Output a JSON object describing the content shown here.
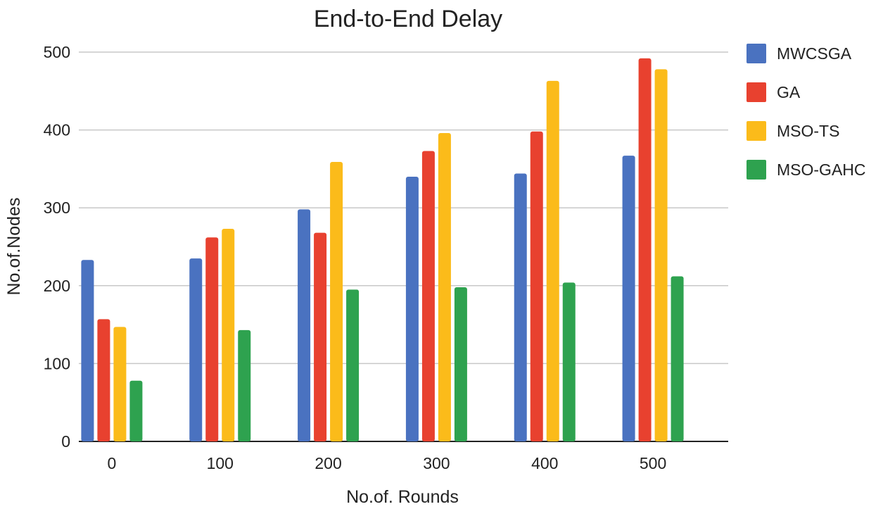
{
  "chart_data": {
    "type": "bar",
    "title": "End-to-End Delay",
    "xlabel": "No.of. Rounds",
    "ylabel": "No.of.Nodes",
    "categories": [
      "0",
      "100",
      "200",
      "300",
      "400",
      "500"
    ],
    "ylim": [
      0,
      500
    ],
    "yticks": [
      0,
      100,
      200,
      300,
      400,
      500
    ],
    "grid": true,
    "legend_position": "right",
    "series": [
      {
        "name": "MWCSGA",
        "color": "#4a72c0",
        "values": [
          233,
          235,
          298,
          340,
          344,
          367
        ]
      },
      {
        "name": "GA",
        "color": "#e8412f",
        "values": [
          157,
          262,
          268,
          373,
          398,
          492
        ]
      },
      {
        "name": "MSO-TS",
        "color": "#fbbb1a",
        "values": [
          147,
          273,
          359,
          396,
          463,
          478
        ]
      },
      {
        "name": "MSO-GAHC",
        "color": "#2ea24f",
        "values": [
          78,
          143,
          195,
          198,
          204,
          212
        ]
      }
    ]
  }
}
